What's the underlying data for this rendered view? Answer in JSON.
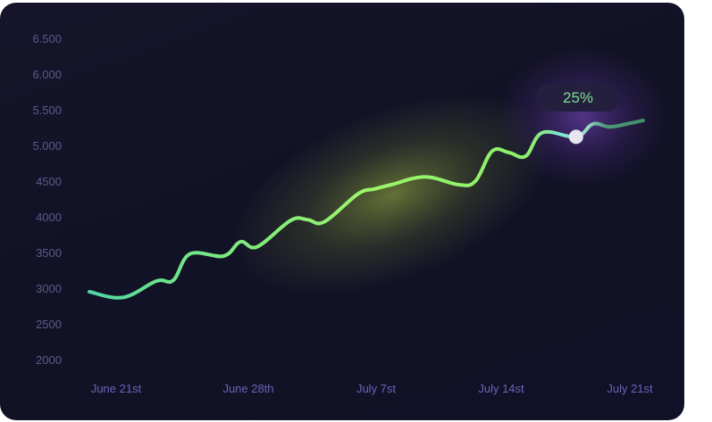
{
  "chart_data": {
    "type": "line",
    "y_ticks": [
      "6.500",
      "6.000",
      "5.500",
      "5.000",
      "4500",
      "4000",
      "3500",
      "3000",
      "2500",
      "2000"
    ],
    "x_ticks": [
      "June 21st",
      "June 28th",
      "July 7st",
      "July 14st",
      "July 21st"
    ],
    "ylim": [
      2000,
      6500
    ],
    "grid": false,
    "series": [
      {
        "x": [
          "2023-06-19",
          "2023-06-21",
          "2023-06-23",
          "2023-06-24",
          "2023-06-25",
          "2023-06-27",
          "2023-06-28",
          "2023-06-29",
          "2023-07-01",
          "2023-07-02",
          "2023-07-03",
          "2023-07-05",
          "2023-07-06",
          "2023-07-07",
          "2023-07-09",
          "2023-07-11",
          "2023-07-12",
          "2023-07-13",
          "2023-07-14",
          "2023-07-15",
          "2023-07-16",
          "2023-07-18",
          "2023-07-19",
          "2023-07-20",
          "2023-07-21",
          "2023-07-22"
        ],
        "values": [
          2950,
          2870,
          3100,
          3110,
          3480,
          3450,
          3650,
          3580,
          3950,
          3960,
          3930,
          4320,
          4390,
          4450,
          4560,
          4450,
          4500,
          4920,
          4900,
          4850,
          5180,
          5120,
          5300,
          5260,
          5300,
          5350
        ]
      }
    ],
    "annotation": {
      "label": "25%",
      "x": "2023-07-18",
      "value": 5120
    }
  },
  "colors": {
    "line_start": "#4fd6a6",
    "line_mid": "#9cf56a",
    "highlight_glow": "#c8e64a",
    "tooltip_glow": "#8a4fd8",
    "marker": "#e6e6ee",
    "bubble_bg": "#241f3f",
    "bubble_text": "#7ee08f"
  }
}
